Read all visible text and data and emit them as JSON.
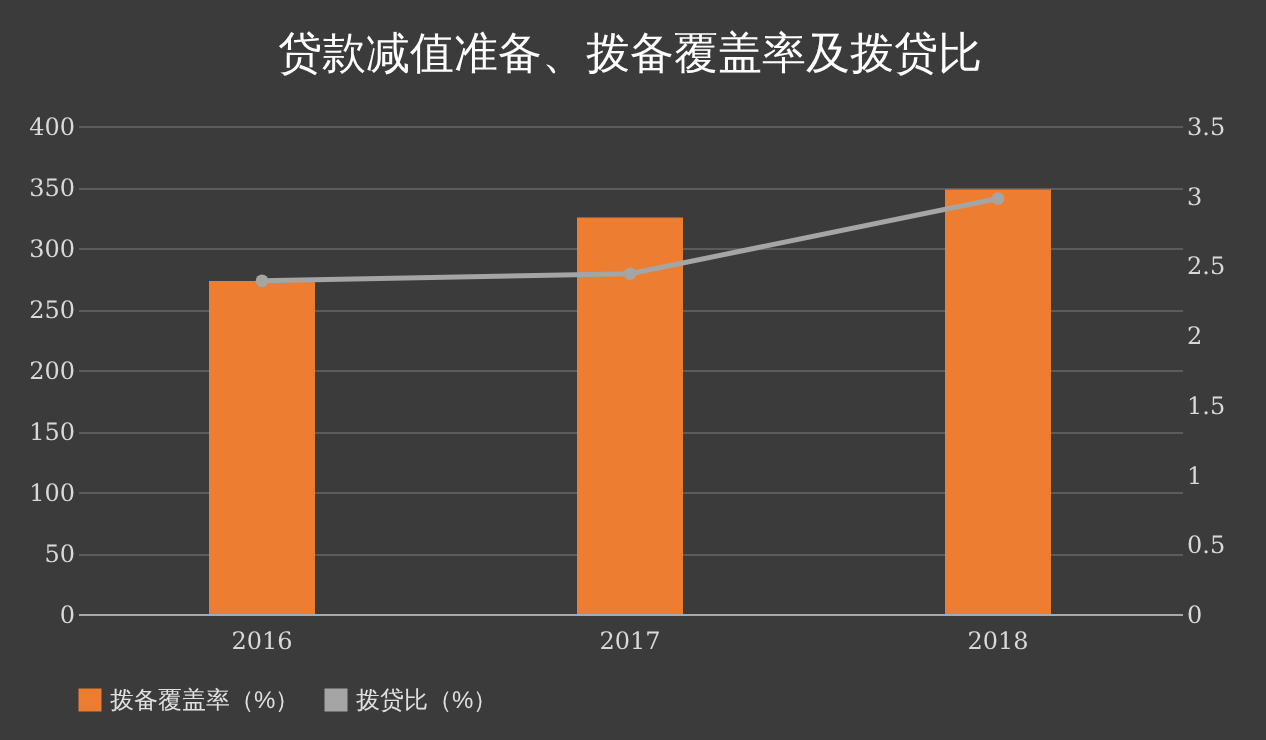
{
  "chart_data": {
    "type": "bar",
    "title": "贷款减值准备、拨备覆盖率及拨贷比",
    "categories": [
      "2016",
      "2017",
      "2018"
    ],
    "series": [
      {
        "name": "拨备覆盖率（%）",
        "color": "#ed7d31",
        "values": [
          273,
          325,
          348
        ]
      },
      {
        "name": "拨贷比（%）",
        "type": "line",
        "axis": "y2",
        "color": "#a5a5a5",
        "values": [
          2.39,
          2.44,
          2.98
        ]
      }
    ],
    "ylim": [
      0,
      400
    ],
    "yticks": [
      0,
      50,
      100,
      150,
      200,
      250,
      300,
      350,
      400
    ],
    "y2lim": [
      0,
      3.5
    ],
    "y2ticks": [
      0,
      0.5,
      1,
      1.5,
      2,
      2.5,
      3,
      3.5
    ],
    "grid": "y",
    "legend": "bottom",
    "marker": "circle"
  }
}
